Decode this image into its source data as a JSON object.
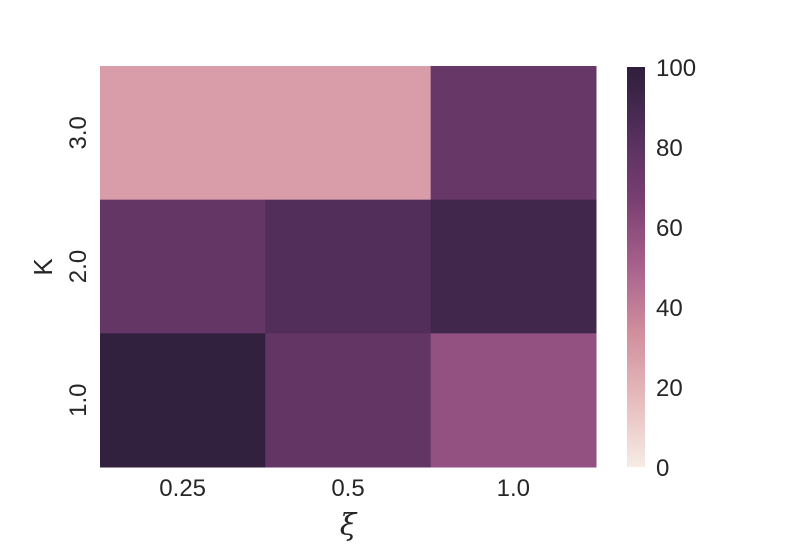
{
  "chart_data": {
    "type": "heatmap",
    "title": "",
    "xlabel": "ξ",
    "ylabel": "K",
    "x_categories": [
      "0.25",
      "0.5",
      "1.0"
    ],
    "y_categories": [
      "3.0",
      "2.0",
      "1.0"
    ],
    "values": [
      [
        28,
        28,
        75
      ],
      [
        76,
        84,
        91
      ],
      [
        98,
        77,
        58
      ]
    ],
    "vmin": 0,
    "vmax": 100,
    "colorbar_ticks": [
      "0",
      "20",
      "40",
      "60",
      "80",
      "100"
    ],
    "colormap": [
      "#f6ece6",
      "#e7bcbc",
      "#d18f9e",
      "#a9618c",
      "#7a3f72",
      "#532f5c",
      "#2e1e3b"
    ]
  }
}
